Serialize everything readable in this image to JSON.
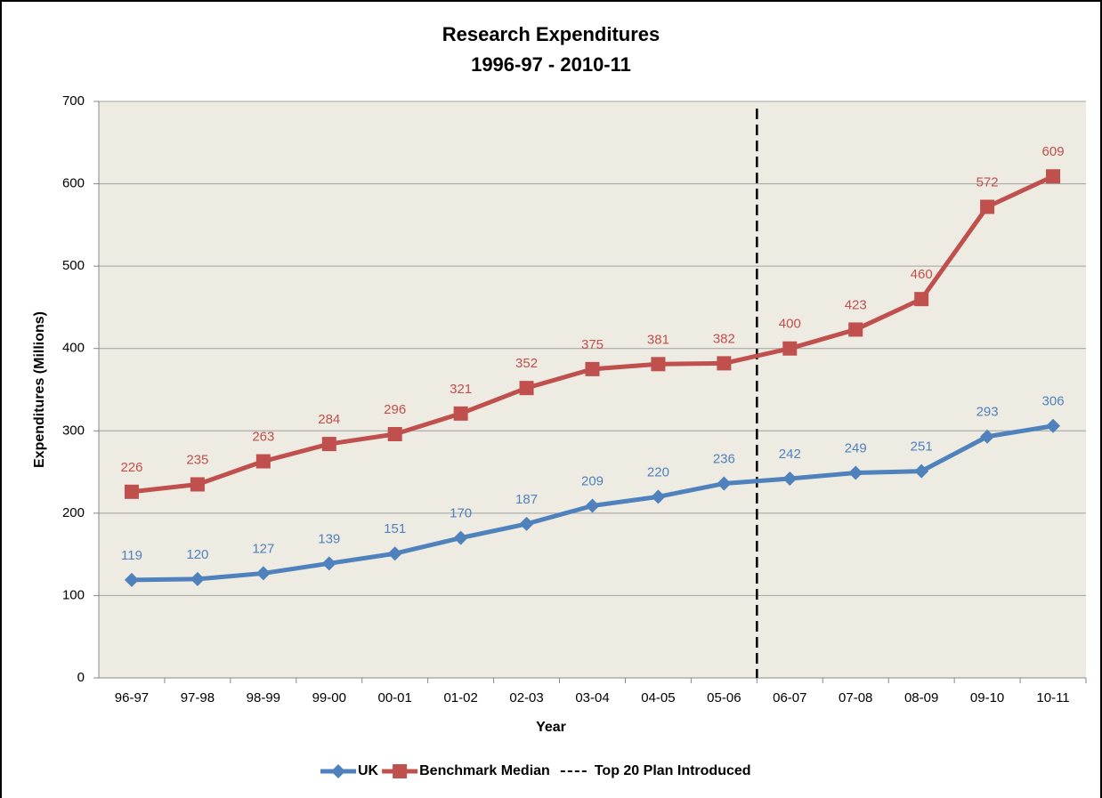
{
  "chart_data": {
    "type": "line",
    "title": "Research Expenditures",
    "subtitle": "1996-97 - 2010-11",
    "x_label": "Year",
    "y_label": "Expenditures (Millions)",
    "categories": [
      "96-97",
      "97-98",
      "98-99",
      "99-00",
      "00-01",
      "01-02",
      "02-03",
      "03-04",
      "04-05",
      "05-06",
      "06-07",
      "07-08",
      "08-09",
      "09-10",
      "10-11"
    ],
    "series": [
      {
        "name": "UK",
        "color": "#4f81bd",
        "marker": "diamond",
        "values": [
          119,
          120,
          127,
          139,
          151,
          170,
          187,
          209,
          220,
          236,
          242,
          249,
          251,
          293,
          306
        ]
      },
      {
        "name": "Benchmark Median",
        "color": "#c0504d",
        "marker": "square",
        "values": [
          226,
          235,
          263,
          284,
          296,
          321,
          352,
          375,
          381,
          382,
          400,
          423,
          460,
          572,
          609
        ]
      }
    ],
    "vline": {
      "name": "Top 20 Plan Introduced",
      "x": 9.5,
      "color": "#000000"
    },
    "ylim": [
      0,
      700
    ],
    "yticks": [
      0,
      100,
      200,
      300,
      400,
      500,
      600,
      700
    ],
    "grid": true,
    "legend": "bottom"
  }
}
